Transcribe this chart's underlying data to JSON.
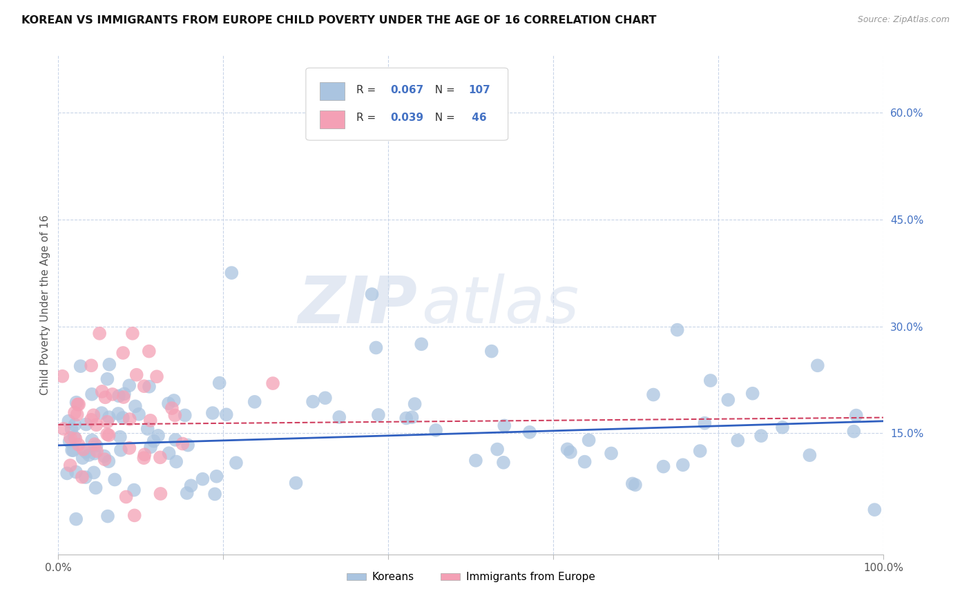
{
  "title": "KOREAN VS IMMIGRANTS FROM EUROPE CHILD POVERTY UNDER THE AGE OF 16 CORRELATION CHART",
  "source": "Source: ZipAtlas.com",
  "ylabel": "Child Poverty Under the Age of 16",
  "xlim": [
    0,
    1.0
  ],
  "ylim": [
    -0.02,
    0.68
  ],
  "yticks": [
    0.15,
    0.3,
    0.45,
    0.6
  ],
  "ytick_labels": [
    "15.0%",
    "30.0%",
    "45.0%",
    "60.0%"
  ],
  "korean_R": 0.067,
  "korean_N": 107,
  "europe_R": 0.039,
  "europe_N": 46,
  "korean_color": "#aac4e0",
  "europe_color": "#f4a0b5",
  "korean_line_color": "#3060c0",
  "europe_line_color": "#d04060",
  "background_color": "#ffffff",
  "grid_color": "#c8d4e8",
  "legend_label_korean": "Koreans",
  "legend_label_europe": "Immigrants from Europe",
  "watermark_zip": "ZIP",
  "watermark_atlas": "atlas",
  "title_fontsize": 11.5,
  "source_fontsize": 9
}
